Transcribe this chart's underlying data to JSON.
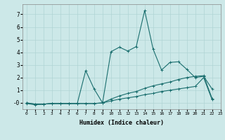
{
  "title": "",
  "xlabel": "Humidex (Indice chaleur)",
  "xlim": [
    -0.5,
    23
  ],
  "ylim": [
    -0.5,
    7.8
  ],
  "xticks": [
    0,
    1,
    2,
    3,
    4,
    5,
    6,
    7,
    8,
    9,
    10,
    11,
    12,
    13,
    14,
    15,
    16,
    17,
    18,
    19,
    20,
    21,
    22,
    23
  ],
  "yticks": [
    0,
    1,
    2,
    3,
    4,
    5,
    6,
    7
  ],
  "ytick_labels": [
    "-0",
    "1",
    "2",
    "3",
    "4",
    "5",
    "6",
    "7"
  ],
  "bg_color": "#cce8e8",
  "line_color": "#1a6e6e",
  "grid_color": "#b0d4d4",
  "line1_x": [
    0,
    1,
    2,
    3,
    4,
    5,
    6,
    7,
    8,
    9,
    10,
    11,
    12,
    13,
    14,
    15,
    16,
    17,
    18,
    19,
    20,
    21,
    22
  ],
  "line1_y": [
    -0.05,
    -0.15,
    -0.1,
    -0.05,
    -0.05,
    -0.05,
    -0.05,
    2.55,
    1.1,
    0.0,
    4.05,
    4.4,
    4.1,
    4.45,
    7.3,
    4.25,
    2.6,
    3.2,
    3.25,
    2.65,
    2.0,
    2.1,
    1.1
  ],
  "line2_x": [
    0,
    1,
    2,
    3,
    4,
    5,
    6,
    7,
    8,
    9,
    10,
    11,
    12,
    13,
    14,
    15,
    16,
    17,
    18,
    19,
    20,
    21,
    22
  ],
  "line2_y": [
    0.0,
    -0.1,
    -0.1,
    -0.05,
    -0.05,
    -0.05,
    -0.05,
    -0.05,
    -0.05,
    0.0,
    0.3,
    0.55,
    0.75,
    0.9,
    1.15,
    1.35,
    1.5,
    1.65,
    1.85,
    2.0,
    2.1,
    2.15,
    0.35
  ],
  "line3_x": [
    0,
    1,
    2,
    3,
    4,
    5,
    6,
    7,
    8,
    9,
    10,
    11,
    12,
    13,
    14,
    15,
    16,
    17,
    18,
    19,
    20,
    21,
    22
  ],
  "line3_y": [
    0.0,
    -0.1,
    -0.1,
    -0.05,
    -0.05,
    -0.05,
    -0.05,
    -0.05,
    -0.05,
    0.0,
    0.15,
    0.3,
    0.4,
    0.5,
    0.65,
    0.75,
    0.9,
    1.0,
    1.1,
    1.2,
    1.3,
    2.0,
    0.25
  ],
  "xtick_fontsize": 4.5,
  "ytick_fontsize": 5.5,
  "xlabel_fontsize": 6.0
}
